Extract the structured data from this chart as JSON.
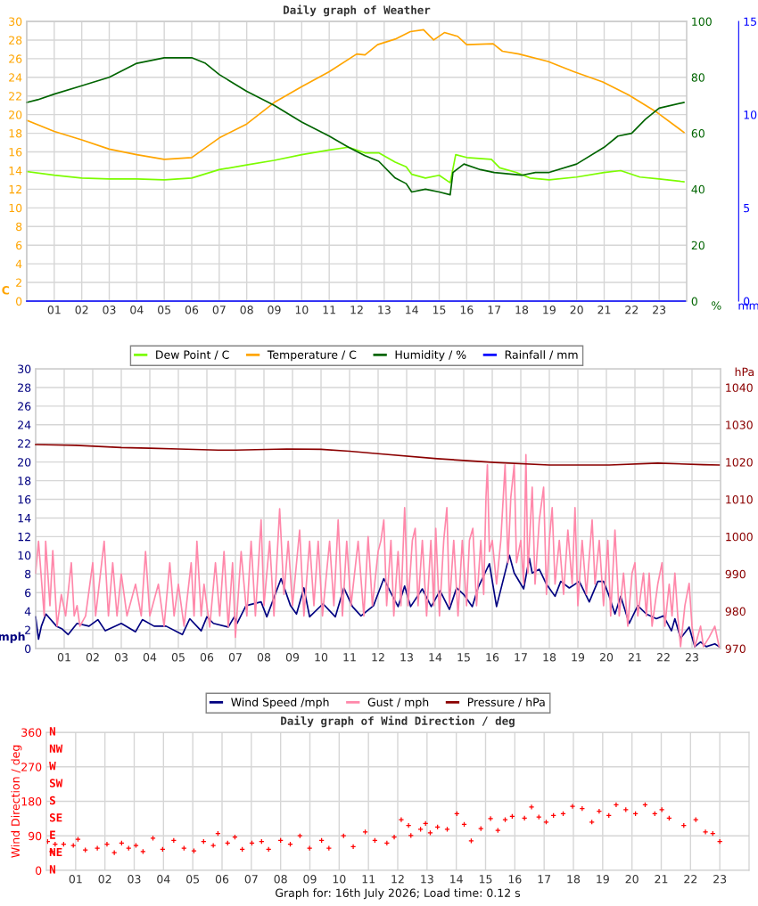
{
  "chart_data": [
    {
      "type": "line",
      "title": "Daily graph of Weather",
      "ylabel": "C",
      "y2label": "%",
      "y3label": "mm",
      "xlim": [
        0,
        24
      ],
      "xticks": [
        {
          "value": 1,
          "label": "01"
        },
        {
          "value": 2,
          "label": "02"
        },
        {
          "value": 3,
          "label": "03"
        },
        {
          "value": 4,
          "label": "04"
        },
        {
          "value": 5,
          "label": "05"
        },
        {
          "value": 6,
          "label": "06"
        },
        {
          "value": 7,
          "label": "07"
        },
        {
          "value": 8,
          "label": "08"
        },
        {
          "value": 9,
          "label": "09"
        },
        {
          "value": 10,
          "label": "10"
        },
        {
          "value": 11,
          "label": "11"
        },
        {
          "value": 12,
          "label": "12"
        },
        {
          "value": 13,
          "label": "13"
        },
        {
          "value": 14,
          "label": "14"
        },
        {
          "value": 15,
          "label": "15"
        },
        {
          "value": 16,
          "label": "16"
        },
        {
          "value": 17,
          "label": "17"
        },
        {
          "value": 18,
          "label": "18"
        },
        {
          "value": 19,
          "label": "19"
        },
        {
          "value": 20,
          "label": "20"
        },
        {
          "value": 21,
          "label": "21"
        },
        {
          "value": 22,
          "label": "22"
        },
        {
          "value": 23,
          "label": "23"
        }
      ],
      "ylim": [
        0,
        30
      ],
      "yticks": [
        0,
        2,
        4,
        6,
        8,
        10,
        12,
        14,
        16,
        18,
        20,
        22,
        24,
        26,
        28,
        30
      ],
      "y2lim": [
        0,
        100
      ],
      "y2ticks": [
        0,
        20,
        40,
        60,
        80,
        100
      ],
      "y3lim": [
        0,
        15
      ],
      "y3ticks": [
        0,
        5,
        10,
        15
      ],
      "grid": true,
      "legend": "bottom",
      "series": [
        {
          "name": "Dew Point / C",
          "color": "#7cfc00",
          "x": [
            0,
            1,
            2,
            3,
            4,
            5,
            6,
            7,
            8,
            9,
            10,
            11,
            11.7,
            12.3,
            12.8,
            13.4,
            13.8,
            14,
            14.5,
            15,
            15.4,
            15.6,
            16,
            16.9,
            17.2,
            17.8,
            18.3,
            19,
            20,
            21,
            21.6,
            22.3,
            23,
            23.9
          ],
          "values": [
            13.9,
            13.5,
            13.2,
            13.1,
            13.1,
            13.0,
            13.2,
            14.1,
            14.6,
            15.1,
            15.7,
            16.2,
            16.5,
            15.9,
            15.9,
            14.9,
            14.4,
            13.6,
            13.2,
            13.5,
            12.7,
            15.7,
            15.4,
            15.2,
            14.3,
            13.8,
            13.2,
            13.0,
            13.3,
            13.8,
            14.0,
            13.3,
            13.1,
            12.8
          ]
        },
        {
          "name": "Temperature / C",
          "color": "#ffa500",
          "x": [
            0,
            1,
            2,
            3,
            4,
            5,
            6,
            7,
            8,
            9,
            10,
            11,
            12,
            12.3,
            12.76,
            13.4,
            13.95,
            14.43,
            14.8,
            15.19,
            15.67,
            16,
            16.96,
            17.3,
            17.9,
            18.96,
            19.9,
            20.95,
            21.9,
            22.94,
            23.9
          ],
          "values": [
            19.4,
            18.2,
            17.3,
            16.3,
            15.7,
            15.2,
            15.4,
            17.5,
            19.0,
            21.3,
            23.0,
            24.6,
            26.5,
            26.4,
            27.5,
            28.1,
            28.9,
            29.1,
            28.0,
            28.8,
            28.4,
            27.5,
            27.6,
            26.8,
            26.5,
            25.7,
            24.6,
            23.5,
            22.1,
            20.2,
            18.1
          ]
        },
        {
          "name": "Humidity / %",
          "color": "#006400",
          "axis": "y2",
          "x": [
            0,
            0.4,
            1,
            2,
            3,
            4,
            5,
            6,
            6.5,
            7,
            8,
            9,
            10,
            11,
            11.7,
            12.3,
            12.8,
            13.4,
            13.8,
            14,
            14.5,
            15,
            15.4,
            15.5,
            15.9,
            16.5,
            17,
            18,
            18.5,
            19,
            20,
            21,
            21.5,
            22,
            22.5,
            23,
            23.9
          ],
          "values": [
            71,
            72,
            74,
            77,
            80,
            85,
            87,
            87,
            85,
            81,
            75,
            70,
            64,
            59,
            55,
            52,
            50,
            44,
            42,
            39,
            40,
            39,
            38,
            46,
            49,
            47,
            46,
            45,
            46,
            46,
            49,
            55,
            59,
            60,
            65,
            69,
            71
          ]
        },
        {
          "name": "Rainfall / mm",
          "color": "#0000ff",
          "axis": "y3",
          "x": [
            0,
            23.95
          ],
          "values": [
            0,
            0
          ]
        }
      ]
    },
    {
      "type": "line",
      "ylabel": "mph",
      "y2label": "hPa",
      "xlim": [
        0,
        24
      ],
      "xticks": [
        {
          "value": 1,
          "label": "01"
        },
        {
          "value": 2,
          "label": "02"
        },
        {
          "value": 3,
          "label": "03"
        },
        {
          "value": 4,
          "label": "04"
        },
        {
          "value": 5,
          "label": "05"
        },
        {
          "value": 6,
          "label": "06"
        },
        {
          "value": 7,
          "label": "07"
        },
        {
          "value": 8,
          "label": "08"
        },
        {
          "value": 9,
          "label": "09"
        },
        {
          "value": 10,
          "label": "10"
        },
        {
          "value": 11,
          "label": "11"
        },
        {
          "value": 12,
          "label": "12"
        },
        {
          "value": 13,
          "label": "13"
        },
        {
          "value": 14,
          "label": "14"
        },
        {
          "value": 15,
          "label": "15"
        },
        {
          "value": 16,
          "label": "16"
        },
        {
          "value": 17,
          "label": "17"
        },
        {
          "value": 18,
          "label": "18"
        },
        {
          "value": 19,
          "label": "19"
        },
        {
          "value": 20,
          "label": "20"
        },
        {
          "value": 21,
          "label": "21"
        },
        {
          "value": 22,
          "label": "22"
        },
        {
          "value": 23,
          "label": "23"
        }
      ],
      "ylim": [
        0,
        30
      ],
      "yticks": [
        0,
        2,
        4,
        6,
        8,
        10,
        12,
        14,
        16,
        18,
        20,
        22,
        24,
        26,
        28,
        30
      ],
      "y2lim": [
        970,
        1045
      ],
      "y2ticks": [
        970,
        980,
        990,
        1000,
        1010,
        1020,
        1030,
        1040
      ],
      "grid": true,
      "legend": "bottom",
      "series": [
        {
          "name": "Wind Speed /mph",
          "color": "#000080",
          "x": [
            0,
            0.1,
            0.2,
            0.36,
            0.73,
            0.93,
            1.14,
            1.45,
            1.87,
            2.18,
            2.44,
            3.0,
            3.5,
            3.74,
            4.15,
            4.57,
            5.14,
            5.4,
            5.8,
            6.0,
            6.23,
            6.75,
            6.96,
            7.06,
            7.37,
            7.9,
            8.1,
            8.6,
            8.93,
            9.14,
            9.4,
            9.6,
            10.07,
            10.5,
            10.8,
            11.1,
            11.4,
            11.84,
            12.0,
            12.2,
            12.46,
            12.7,
            12.93,
            13.14,
            13.55,
            13.86,
            14.17,
            14.5,
            14.75,
            15.0,
            15.3,
            15.5,
            15.9,
            16.15,
            16.6,
            16.77,
            17.1,
            17.3,
            17.4,
            17.65,
            17.9,
            18.2,
            18.4,
            18.7,
            19.05,
            19.4,
            19.7,
            19.9,
            20.1,
            20.3,
            20.5,
            20.8,
            21.1,
            21.4,
            21.75,
            22.0,
            22.28,
            22.4,
            22.6,
            22.9,
            23.1,
            23.3,
            23.5,
            23.8,
            23.95
          ],
          "values": [
            3.4,
            1.0,
            2.4,
            3.7,
            2.4,
            2.1,
            1.5,
            2.7,
            2.4,
            3.1,
            1.9,
            2.7,
            1.8,
            3.1,
            2.4,
            2.4,
            1.5,
            3.2,
            1.9,
            3.4,
            2.7,
            2.3,
            3.4,
            2.7,
            4.6,
            5.0,
            3.4,
            7.5,
            4.6,
            3.7,
            6.5,
            3.4,
            4.8,
            3.4,
            6.5,
            4.5,
            3.5,
            4.6,
            5.9,
            7.5,
            5.9,
            4.5,
            6.7,
            4.5,
            6.4,
            4.5,
            6.2,
            4.2,
            6.5,
            5.8,
            4.5,
            6.5,
            9.1,
            4.5,
            10.0,
            8.1,
            6.4,
            9.7,
            8.1,
            8.5,
            6.9,
            5.6,
            7.2,
            6.5,
            7.2,
            5.0,
            7.2,
            7.2,
            5.6,
            3.7,
            5.6,
            2.7,
            4.6,
            3.7,
            3.2,
            3.5,
            1.9,
            3.2,
            1.1,
            2.3,
            0.2,
            0.7,
            0.2,
            0.5,
            0.2
          ]
        },
        {
          "name": "Gust / mph",
          "color": "#ff88aa",
          "x": [
            0,
            0.1,
            0.3,
            0.35,
            0.5,
            0.6,
            0.75,
            0.9,
            1.05,
            1.25,
            1.35,
            1.45,
            1.55,
            1.75,
            2.0,
            2.1,
            2.4,
            2.55,
            2.7,
            2.85,
            3.0,
            3.2,
            3.5,
            3.7,
            3.85,
            4.0,
            4.3,
            4.5,
            4.7,
            4.85,
            5.0,
            5.2,
            5.45,
            5.55,
            5.65,
            5.8,
            5.9,
            6.1,
            6.3,
            6.45,
            6.6,
            6.75,
            6.9,
            7.0,
            7.2,
            7.4,
            7.55,
            7.7,
            7.9,
            8.0,
            8.2,
            8.35,
            8.55,
            8.7,
            8.85,
            9.0,
            9.25,
            9.4,
            9.6,
            9.75,
            9.9,
            10.05,
            10.3,
            10.45,
            10.6,
            10.75,
            10.9,
            11.05,
            11.3,
            11.5,
            11.65,
            11.8,
            12.0,
            12.1,
            12.2,
            12.3,
            12.45,
            12.55,
            12.7,
            12.8,
            12.93,
            13.05,
            13.2,
            13.3,
            13.4,
            13.55,
            13.7,
            13.85,
            13.95,
            14.02,
            14.15,
            14.3,
            14.41,
            14.5,
            14.65,
            14.8,
            14.95,
            15.1,
            15.2,
            15.32,
            15.45,
            15.6,
            15.7,
            15.78,
            15.83,
            15.9,
            16.0,
            16.15,
            16.3,
            16.45,
            16.55,
            16.65,
            16.77,
            16.85,
            17.0,
            17.1,
            17.18,
            17.25,
            17.4,
            17.5,
            17.65,
            17.8,
            17.9,
            18.0,
            18.1,
            18.2,
            18.35,
            18.5,
            18.65,
            18.8,
            18.9,
            19.0,
            19.15,
            19.3,
            19.5,
            19.6,
            19.75,
            19.9,
            20.05,
            20.15,
            20.3,
            20.45,
            20.6,
            20.75,
            20.9,
            21.0,
            21.1,
            21.3,
            21.4,
            21.5,
            21.6,
            21.8,
            21.95,
            22.05,
            22.2,
            22.3,
            22.4,
            22.5,
            22.6,
            22.75,
            22.9,
            23.0,
            23.1,
            23.3,
            23.4,
            23.6,
            23.8,
            23.95
          ],
          "values": [
            8.1,
            11.5,
            3.5,
            11.5,
            4.6,
            10.5,
            2.4,
            5.8,
            3.5,
            9.2,
            3.5,
            4.6,
            2.4,
            3.5,
            9.2,
            3.5,
            11.5,
            3.5,
            9.2,
            3.5,
            8.0,
            3.5,
            6.9,
            3.5,
            10.4,
            3.5,
            6.9,
            2.4,
            9.2,
            3.5,
            6.9,
            2.4,
            9.2,
            3.5,
            11.5,
            3.5,
            6.9,
            2.3,
            9.2,
            3.5,
            10.4,
            2.3,
            9.2,
            1.2,
            10.4,
            3.5,
            11.5,
            3.5,
            13.8,
            4.6,
            11.5,
            3.5,
            15.0,
            5.8,
            11.5,
            4.6,
            12.7,
            3.5,
            11.5,
            4.6,
            11.5,
            3.5,
            11.5,
            4.6,
            13.8,
            3.5,
            11.5,
            4.6,
            11.5,
            3.5,
            12.0,
            4.6,
            10.4,
            11.6,
            13.8,
            4.6,
            11.6,
            3.5,
            10.4,
            4.6,
            15.1,
            4.6,
            11.6,
            12.9,
            4.6,
            11.6,
            3.5,
            11.6,
            4.6,
            12.9,
            3.5,
            11.6,
            15.1,
            4.6,
            11.6,
            3.5,
            11.6,
            4.6,
            11.6,
            12.9,
            4.6,
            11.6,
            5.8,
            16.2,
            19.7,
            10.4,
            11.6,
            6.9,
            11.6,
            19.7,
            9.2,
            16.2,
            19.7,
            9.2,
            11.6,
            6.9,
            20.8,
            8.1,
            17.3,
            6.9,
            13.8,
            17.3,
            5.8,
            11.6,
            15.1,
            6.9,
            11.6,
            5.8,
            12.7,
            6.9,
            15.1,
            4.6,
            11.6,
            5.8,
            13.8,
            6.9,
            11.6,
            4.6,
            11.6,
            3.5,
            12.7,
            3.5,
            8.1,
            2.4,
            8.1,
            9.2,
            3.5,
            8.1,
            3.5,
            8.1,
            2.4,
            6.9,
            9.2,
            2.4,
            6.9,
            3.5,
            8.1,
            3.5,
            0.2,
            4.6,
            7.0,
            2.4,
            0.2,
            2.4,
            0.2,
            1.2,
            2.4,
            0.2
          ]
        },
        {
          "name": "Pressure / hPa",
          "color": "#8b0000",
          "axis": "y2",
          "x": [
            0,
            1.4,
            3,
            4,
            5,
            6.4,
            7,
            8.8,
            10,
            11,
            11.9,
            14.07,
            16.1,
            18.0,
            20.1,
            21.8,
            23.4,
            23.95
          ],
          "values": [
            1024.7,
            1024.5,
            1023.9,
            1023.7,
            1023.5,
            1023.2,
            1023.2,
            1023.5,
            1023.4,
            1022.9,
            1022.3,
            1020.9,
            1019.9,
            1019.2,
            1019.2,
            1019.7,
            1019.3,
            1019.2
          ]
        }
      ]
    },
    {
      "type": "scatter",
      "title": "Daily graph of Wind Direction / deg",
      "ylabel": "Wind Direction / deg",
      "xlim": [
        0,
        24
      ],
      "xticks": [
        {
          "value": 1,
          "label": "01"
        },
        {
          "value": 2,
          "label": "02"
        },
        {
          "value": 3,
          "label": "03"
        },
        {
          "value": 4,
          "label": "04"
        },
        {
          "value": 5,
          "label": "05"
        },
        {
          "value": 6,
          "label": "06"
        },
        {
          "value": 7,
          "label": "07"
        },
        {
          "value": 8,
          "label": "08"
        },
        {
          "value": 9,
          "label": "09"
        },
        {
          "value": 10,
          "label": "10"
        },
        {
          "value": 11,
          "label": "11"
        },
        {
          "value": 12,
          "label": "12"
        },
        {
          "value": 13,
          "label": "13"
        },
        {
          "value": 14,
          "label": "14"
        },
        {
          "value": 15,
          "label": "15"
        },
        {
          "value": 16,
          "label": "16"
        },
        {
          "value": 17,
          "label": "17"
        },
        {
          "value": 18,
          "label": "18"
        },
        {
          "value": 19,
          "label": "19"
        },
        {
          "value": 20,
          "label": "20"
        },
        {
          "value": 21,
          "label": "21"
        },
        {
          "value": 22,
          "label": "22"
        },
        {
          "value": 23,
          "label": "23"
        }
      ],
      "ylim": [
        0,
        360
      ],
      "yticks": [
        0,
        90,
        180,
        270,
        360
      ],
      "grid": true,
      "marker": "cross",
      "annotations": [
        "N",
        "NE",
        "E",
        "SE",
        "S",
        "SW",
        "W",
        "NW",
        "N",
        "Graph for: 16th July 2026; Load time: 0.12 s"
      ],
      "series": [
        {
          "color": "#ff0000",
          "x": [
            0.04,
            0.18,
            0.3,
            0.59,
            0.92,
            1.08,
            1.33,
            1.74,
            2.07,
            2.32,
            2.57,
            2.81,
            3.06,
            3.3,
            3.64,
            3.97,
            4.35,
            4.7,
            5.04,
            5.37,
            5.7,
            5.86,
            6.19,
            6.44,
            6.69,
            7.02,
            7.35,
            7.59,
            8.0,
            8.33,
            8.66,
            8.99,
            9.4,
            9.65,
            10.15,
            10.48,
            10.89,
            11.22,
            11.63,
            11.88,
            12.12,
            12.37,
            12.45,
            12.78,
            12.95,
            13.11,
            13.36,
            13.69,
            14.02,
            14.27,
            14.51,
            14.84,
            15.17,
            15.42,
            15.67,
            15.91,
            16.33,
            16.57,
            16.82,
            17.07,
            17.32,
            17.65,
            17.97,
            18.3,
            18.63,
            18.88,
            19.21,
            19.46,
            19.79,
            20.12,
            20.45,
            20.78,
            21.02,
            21.27,
            21.77,
            22.18,
            22.51,
            22.76,
            23.0
          ],
          "values": [
            75,
            49,
            68,
            68,
            65,
            81,
            53,
            58,
            68,
            46,
            71,
            58,
            65,
            49,
            84,
            55,
            78,
            58,
            51,
            75,
            65,
            96,
            71,
            87,
            55,
            71,
            75,
            55,
            78,
            68,
            90,
            58,
            78,
            58,
            90,
            62,
            100,
            78,
            71,
            87,
            132,
            117,
            91,
            107,
            122,
            98,
            113,
            107,
            148,
            120,
            77,
            109,
            135,
            104,
            132,
            141,
            136,
            165,
            139,
            126,
            143,
            148,
            167,
            161,
            126,
            154,
            143,
            171,
            158,
            148,
            171,
            148,
            158,
            136,
            117,
            132,
            100,
            96,
            75
          ]
        }
      ]
    }
  ]
}
